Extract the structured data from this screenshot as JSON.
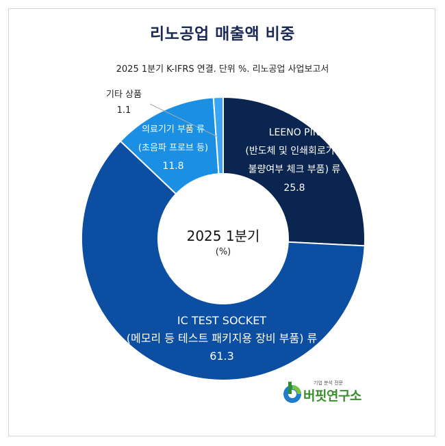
{
  "title": "리노공업 매출액 비중",
  "subtitle": "2025 1분기 K-IFRS 연결. 단위 %. 리노공업 사업보고서",
  "center": {
    "line1": "2025 1분기",
    "line2": "(%)"
  },
  "chart_data": {
    "type": "pie",
    "donut": true,
    "categories": [
      "LEENO PIN (반도체 및 인쇄회로기판 불량여부 체크 부품) 류",
      "IC TEST SOCKET (메모리 등 테스트 패키지용 장비 부품) 류",
      "의료기기 부품 류 (초음파 프로브 등)",
      "기타 상품"
    ],
    "values": [
      25.8,
      61.3,
      11.8,
      1.1
    ],
    "colors": [
      "#0b2551",
      "#0b4ea2",
      "#1a8fe3",
      "#3aa5f2"
    ],
    "labels": [
      {
        "lines": [
          "LEENO PIN",
          "(반도체 및 인쇄회로기판",
          "불량여부 체크 부품) 류"
        ],
        "value": "25.8"
      },
      {
        "lines": [
          "IC TEST SOCKET",
          "(메모리 등 테스트 패키지용 장비 부품) 류"
        ],
        "value": "61.3"
      },
      {
        "lines": [
          "의료기기 부품 류",
          "(초음파 프로브 등)"
        ],
        "value": "11.8"
      },
      {
        "lines": [
          "기타 상품"
        ],
        "value": "1.1"
      }
    ]
  },
  "logo": {
    "tagline": "기업 분석 전문",
    "name": "버핏연구소"
  }
}
